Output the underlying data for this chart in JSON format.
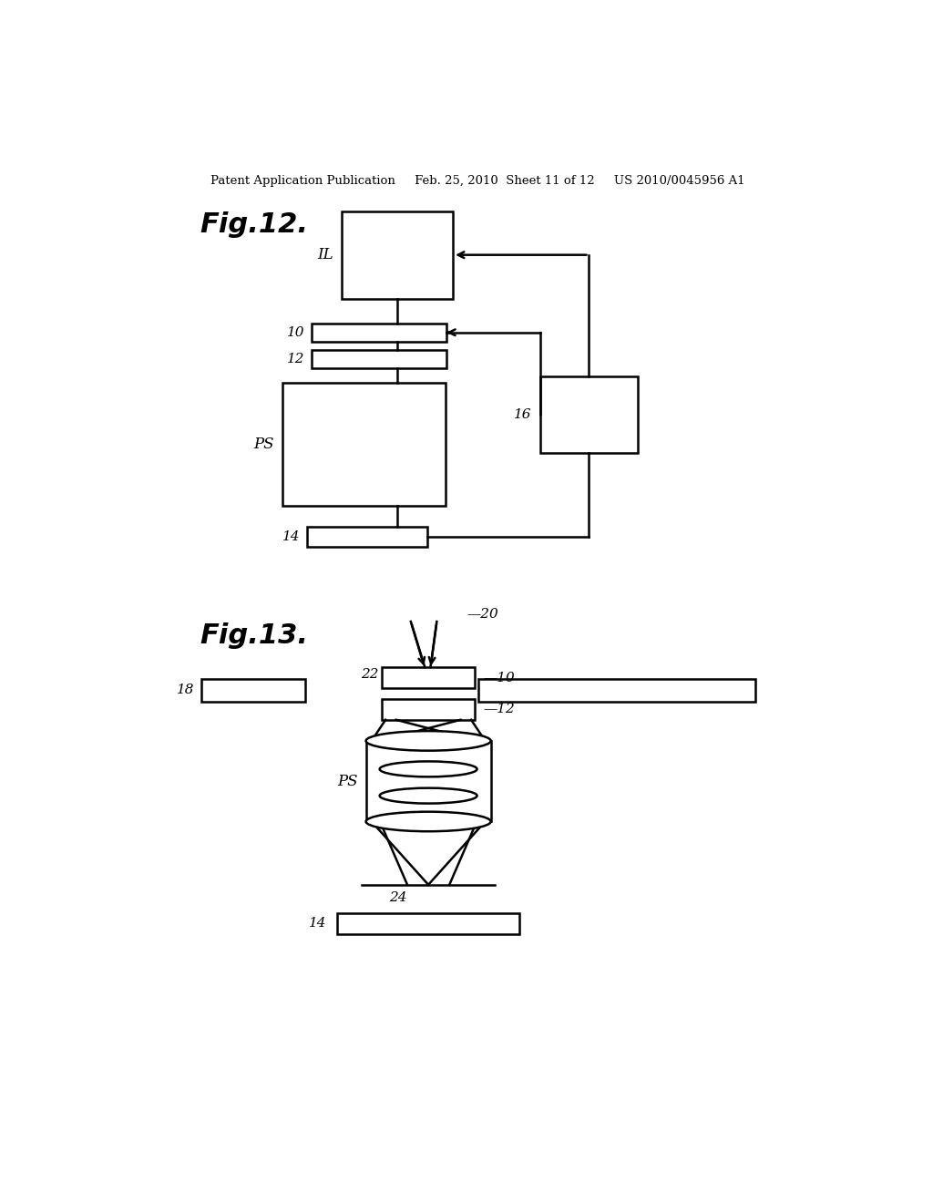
{
  "background_color": "#ffffff",
  "header_text": "Patent Application Publication     Feb. 25, 2010  Sheet 11 of 12     US 2010/0045956 A1",
  "fig12_label": "Fig.12.",
  "fig13_label": "Fig.13.",
  "line_color": "#000000",
  "line_width": 1.8
}
